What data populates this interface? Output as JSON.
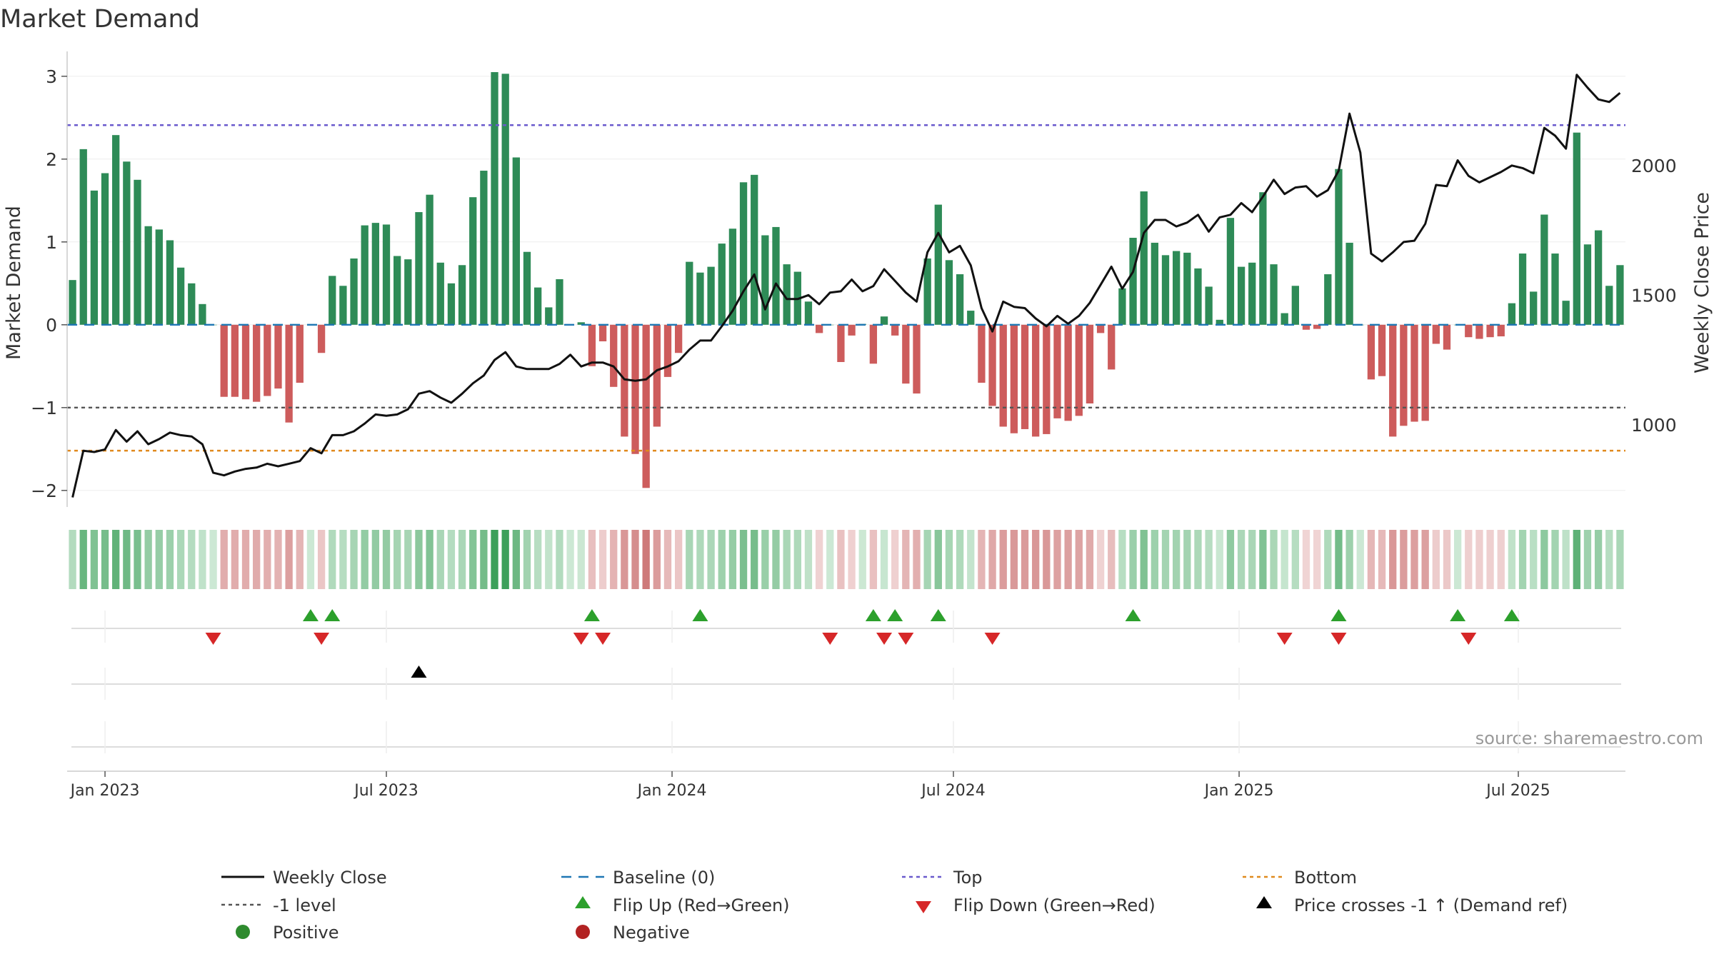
{
  "chart_data": {
    "type": "bar",
    "title": "Market Demand",
    "ylabel": "Market Demand",
    "y2label": "Weekly Close Price",
    "source": "source: sharemaestro.com",
    "ylim": [
      -2.2,
      3.3
    ],
    "y2lim": [
      683,
      2440
    ],
    "yticks": [
      {
        "v": 3,
        "label": "3"
      },
      {
        "v": 2,
        "label": "2"
      },
      {
        "v": 1,
        "label": "1"
      },
      {
        "v": 0,
        "label": "0"
      },
      {
        "v": -1,
        "label": "−1"
      },
      {
        "v": -2,
        "label": "−2"
      }
    ],
    "y2ticks": [
      {
        "v": 2000,
        "label": "2000"
      },
      {
        "v": 1500,
        "label": "1500"
      },
      {
        "v": 1000,
        "label": "1000"
      }
    ],
    "xticks": [
      {
        "i": 3,
        "label": "Jan 2023"
      },
      {
        "i": 29,
        "label": "Jul 2023"
      },
      {
        "i": 55.4,
        "label": "Jan 2024"
      },
      {
        "i": 81.4,
        "label": "Jul 2024"
      },
      {
        "i": 107.8,
        "label": "Jan 2025"
      },
      {
        "i": 133.6,
        "label": "Jul 2025"
      }
    ],
    "levels": {
      "top": 2.41,
      "minus_one": -1.0,
      "bottom": -1.52
    },
    "colors": {
      "positive": "#2e8b57",
      "negative": "#cd5c5c",
      "price": "#111111",
      "baseline": "#1f77b4",
      "top": "#6a5acd",
      "minus_one": "#555555",
      "bottom": "#e08a1e",
      "flip_up": "#2ca02c",
      "flip_down": "#d62728",
      "cross": "#000000"
    },
    "demand": [
      0.54,
      2.12,
      1.62,
      1.83,
      2.29,
      1.97,
      1.75,
      1.19,
      1.15,
      1.02,
      0.69,
      0.5,
      0.25,
      0.0,
      -0.87,
      -0.87,
      -0.9,
      -0.93,
      -0.86,
      -0.77,
      -1.18,
      -0.7,
      0.0,
      -0.34,
      0.59,
      0.47,
      0.8,
      1.2,
      1.23,
      1.21,
      0.83,
      0.79,
      1.36,
      1.57,
      0.75,
      0.5,
      0.72,
      1.54,
      1.86,
      3.05,
      3.03,
      2.02,
      0.88,
      0.45,
      0.21,
      0.55,
      0.0,
      0.03,
      -0.5,
      -0.2,
      -0.75,
      -1.35,
      -1.56,
      -1.97,
      -1.23,
      -0.63,
      -0.34,
      0.76,
      0.63,
      0.7,
      0.98,
      1.16,
      1.72,
      1.81,
      1.08,
      1.18,
      0.73,
      0.64,
      0.28,
      -0.1,
      0.0,
      -0.45,
      -0.13,
      0.01,
      -0.47,
      0.1,
      -0.13,
      -0.71,
      -0.83,
      0.8,
      1.45,
      0.78,
      0.61,
      0.17,
      -0.7,
      -0.98,
      -1.23,
      -1.31,
      -1.26,
      -1.35,
      -1.32,
      -1.13,
      -1.16,
      -1.1,
      -0.95,
      -0.1,
      -0.54,
      0.44,
      1.05,
      1.61,
      0.99,
      0.84,
      0.89,
      0.87,
      0.68,
      0.46,
      0.06,
      1.29,
      0.7,
      0.75,
      1.6,
      0.73,
      0.14,
      0.47,
      -0.06,
      -0.05,
      0.61,
      1.88,
      0.99,
      0.0,
      -0.66,
      -0.62,
      -1.35,
      -1.22,
      -1.17,
      -1.16,
      -0.23,
      -0.3,
      0.0,
      -0.15,
      -0.17,
      -0.15,
      -0.14,
      0.26,
      0.86,
      0.4,
      1.33,
      0.86,
      0.29,
      2.32,
      0.97,
      1.14,
      0.47,
      0.72
    ],
    "price": [
      720,
      900,
      895,
      905,
      980,
      935,
      975,
      925,
      945,
      970,
      960,
      955,
      925,
      815,
      805,
      820,
      830,
      835,
      850,
      840,
      850,
      860,
      910,
      890,
      960,
      960,
      975,
      1005,
      1040,
      1035,
      1040,
      1060,
      1120,
      1130,
      1105,
      1085,
      1120,
      1160,
      1190,
      1250,
      1280,
      1225,
      1215,
      1215,
      1215,
      1235,
      1270,
      1225,
      1240,
      1240,
      1225,
      1175,
      1170,
      1175,
      1210,
      1225,
      1245,
      1290,
      1325,
      1325,
      1380,
      1440,
      1515,
      1580,
      1445,
      1545,
      1485,
      1485,
      1500,
      1465,
      1510,
      1515,
      1560,
      1515,
      1535,
      1600,
      1555,
      1510,
      1475,
      1665,
      1740,
      1665,
      1690,
      1615,
      1450,
      1360,
      1475,
      1455,
      1450,
      1410,
      1380,
      1420,
      1390,
      1420,
      1470,
      1540,
      1610,
      1525,
      1590,
      1740,
      1790,
      1790,
      1765,
      1780,
      1810,
      1745,
      1800,
      1810,
      1855,
      1820,
      1880,
      1945,
      1890,
      1915,
      1920,
      1880,
      1905,
      1980,
      2200,
      2050,
      1660,
      1630,
      1665,
      1705,
      1710,
      1775,
      1925,
      1920,
      2020,
      1960,
      1935,
      1955,
      1975,
      2000,
      1990,
      1970,
      2145,
      2115,
      2065,
      2350,
      2300,
      2255,
      2245,
      2280
    ],
    "flip_up": [
      22,
      24,
      48,
      58,
      74,
      76,
      80,
      98,
      117,
      128,
      133
    ],
    "flip_down": [
      13,
      23,
      47,
      49,
      70,
      75,
      77,
      85,
      112,
      117,
      129
    ],
    "cross_up": [
      32
    ],
    "legend": [
      {
        "key": "price",
        "label": "Weekly Close"
      },
      {
        "key": "baseline",
        "label": "Baseline (0)"
      },
      {
        "key": "top",
        "label": "Top"
      },
      {
        "key": "bottom",
        "label": "Bottom"
      },
      {
        "key": "minus_one",
        "label": "-1 level"
      },
      {
        "key": "flip_up",
        "label": "Flip Up (Red→Green)"
      },
      {
        "key": "flip_down",
        "label": "Flip Down (Green→Red)"
      },
      {
        "key": "cross",
        "label": "Price crosses -1 ↑ (Demand ref)"
      },
      {
        "key": "positive",
        "label": "Positive"
      },
      {
        "key": "negative",
        "label": "Negative"
      }
    ]
  }
}
